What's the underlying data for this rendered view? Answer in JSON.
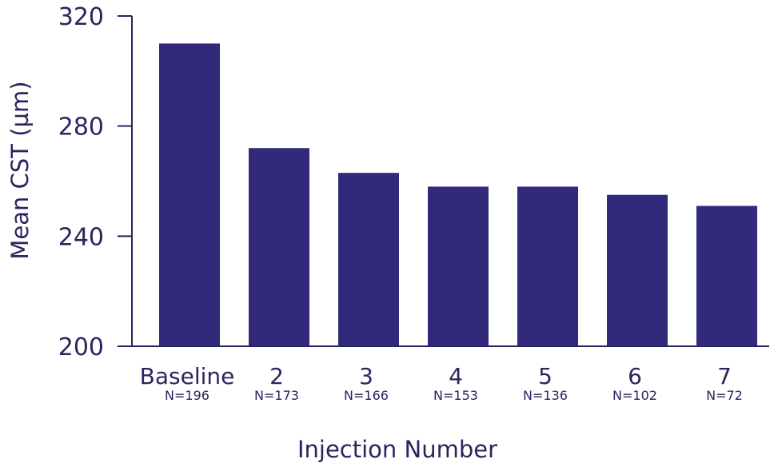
{
  "chart_data": {
    "type": "bar",
    "title": "",
    "xlabel": "Injection Number",
    "ylabel": "Mean CST (µm)",
    "ylim": [
      200,
      320
    ],
    "yticks": [
      200,
      240,
      280,
      320
    ],
    "grid": false,
    "categories": [
      "Baseline",
      "2",
      "3",
      "4",
      "5",
      "6",
      "7"
    ],
    "sample_sizes": [
      "N=196",
      "N=173",
      "N=166",
      "N=153",
      "N=136",
      "N=102",
      "N=72"
    ],
    "values": [
      310,
      272,
      263,
      258,
      258,
      255,
      251
    ]
  },
  "colors": {
    "bar": "#312a7b",
    "axis": "#2b245f",
    "text": "#2b245f"
  }
}
